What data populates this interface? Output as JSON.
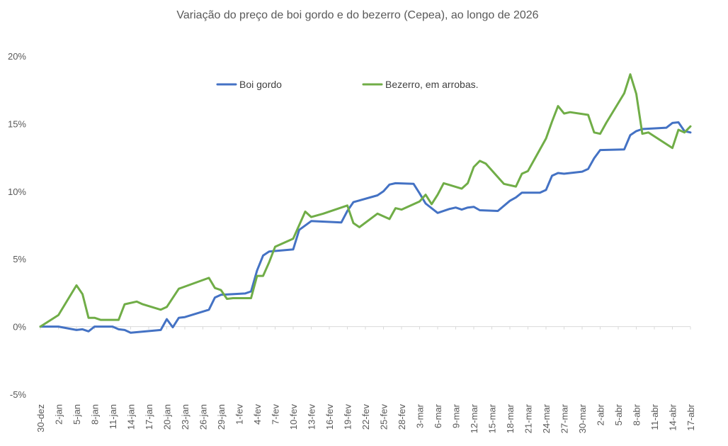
{
  "chart_data": {
    "type": "line",
    "title": "Variação do preço de boi gordo  e do bezerro (Cepea), ao longo de 2026",
    "xlabel": "",
    "ylabel": "",
    "ylim": [
      -0.05,
      0.2
    ],
    "y_ticks": [
      -0.05,
      0,
      0.05,
      0.1,
      0.15,
      0.2
    ],
    "y_tick_labels": [
      "-5%",
      "0%",
      "5%",
      "10%",
      "15%",
      "20%"
    ],
    "x_range": [
      0,
      108
    ],
    "x_tick_positions": [
      0,
      3,
      6,
      9,
      12,
      15,
      18,
      21,
      24,
      27,
      30,
      33,
      36,
      39,
      42,
      45,
      48,
      51,
      54,
      57,
      60,
      63,
      66,
      69,
      72,
      75,
      78,
      81,
      84,
      87,
      90,
      93,
      96,
      99,
      102,
      105,
      108
    ],
    "x_tick_labels": [
      "30-dez",
      "2-jan",
      "5-jan",
      "8-jan",
      "11-jan",
      "14-jan",
      "17-jan",
      "20-jan",
      "23-jan",
      "26-jan",
      "29-jan",
      "1-fev",
      "4-fev",
      "7-fev",
      "10-fev",
      "13-fev",
      "16-fev",
      "19-fev",
      "22-fev",
      "25-fev",
      "28-fev",
      "3-mar",
      "6-mar",
      "9-mar",
      "12-mar",
      "15-mar",
      "18-mar",
      "21-mar",
      "24-mar",
      "27-mar",
      "30-mar",
      "2-abr",
      "5-abr",
      "8-abr",
      "11-abr",
      "14-abr",
      "17-abr"
    ],
    "legend_position": "top-center",
    "series": [
      {
        "name": "Boi gordo",
        "color": "#4472C4",
        "points": [
          [
            0,
            0.0
          ],
          [
            3,
            0.0
          ],
          [
            6,
            -0.0025
          ],
          [
            7,
            -0.002
          ],
          [
            8,
            -0.0035
          ],
          [
            9,
            0.0
          ],
          [
            12,
            0.0
          ],
          [
            13,
            -0.002
          ],
          [
            14,
            -0.0025
          ],
          [
            15,
            -0.0045
          ],
          [
            20,
            -0.0025
          ],
          [
            21,
            0.0055
          ],
          [
            22,
            -0.0005
          ],
          [
            23,
            0.0065
          ],
          [
            24,
            0.007
          ],
          [
            28,
            0.0125
          ],
          [
            29,
            0.0215
          ],
          [
            30,
            0.0235
          ],
          [
            34,
            0.0245
          ],
          [
            35,
            0.026
          ],
          [
            36,
            0.0415
          ],
          [
            37,
            0.0525
          ],
          [
            38,
            0.0555
          ],
          [
            42,
            0.057
          ],
          [
            43,
            0.0715
          ],
          [
            45,
            0.078
          ],
          [
            50,
            0.077
          ],
          [
            51,
            0.0855
          ],
          [
            52,
            0.092
          ],
          [
            56,
            0.097
          ],
          [
            57,
            0.1
          ],
          [
            58,
            0.105
          ],
          [
            59,
            0.106
          ],
          [
            62,
            0.1055
          ],
          [
            63,
            0.0985
          ],
          [
            64,
            0.091
          ],
          [
            66,
            0.084
          ],
          [
            68,
            0.087
          ],
          [
            69,
            0.088
          ],
          [
            70,
            0.0865
          ],
          [
            71,
            0.088
          ],
          [
            72,
            0.0885
          ],
          [
            73,
            0.086
          ],
          [
            76,
            0.0855
          ],
          [
            78,
            0.093
          ],
          [
            79,
            0.0955
          ],
          [
            80,
            0.099
          ],
          [
            83,
            0.099
          ],
          [
            84,
            0.101
          ],
          [
            85,
            0.1115
          ],
          [
            86,
            0.1135
          ],
          [
            87,
            0.113
          ],
          [
            90,
            0.1145
          ],
          [
            91,
            0.1165
          ],
          [
            92,
            0.1245
          ],
          [
            93,
            0.1305
          ],
          [
            97,
            0.131
          ],
          [
            98,
            0.1415
          ],
          [
            99,
            0.1445
          ],
          [
            100,
            0.146
          ],
          [
            104,
            0.147
          ],
          [
            105,
            0.1505
          ],
          [
            106,
            0.151
          ],
          [
            107,
            0.1445
          ],
          [
            108,
            0.1435
          ]
        ]
      },
      {
        "name": "Bezerro, em arrobas.",
        "color": "#70AD47",
        "points": [
          [
            0,
            0.0
          ],
          [
            3,
            0.0085
          ],
          [
            6,
            0.0305
          ],
          [
            7,
            0.024
          ],
          [
            8,
            0.0065
          ],
          [
            9,
            0.0065
          ],
          [
            10,
            0.005
          ],
          [
            13,
            0.005
          ],
          [
            14,
            0.0165
          ],
          [
            16,
            0.0185
          ],
          [
            17,
            0.0165
          ],
          [
            20,
            0.0125
          ],
          [
            21,
            0.0145
          ],
          [
            23,
            0.028
          ],
          [
            28,
            0.036
          ],
          [
            29,
            0.0285
          ],
          [
            30,
            0.027
          ],
          [
            31,
            0.0205
          ],
          [
            32,
            0.021
          ],
          [
            35,
            0.021
          ],
          [
            36,
            0.0375
          ],
          [
            37,
            0.0375
          ],
          [
            38,
            0.0475
          ],
          [
            39,
            0.059
          ],
          [
            42,
            0.065
          ],
          [
            44,
            0.085
          ],
          [
            45,
            0.081
          ],
          [
            47,
            0.0835
          ],
          [
            51,
            0.0895
          ],
          [
            52,
            0.0765
          ],
          [
            53,
            0.0735
          ],
          [
            56,
            0.0835
          ],
          [
            58,
            0.0795
          ],
          [
            59,
            0.0875
          ],
          [
            60,
            0.0865
          ],
          [
            63,
            0.0925
          ],
          [
            64,
            0.0975
          ],
          [
            65,
            0.0905
          ],
          [
            66,
            0.0975
          ],
          [
            67,
            0.106
          ],
          [
            70,
            0.102
          ],
          [
            71,
            0.106
          ],
          [
            72,
            0.118
          ],
          [
            73,
            0.1225
          ],
          [
            74,
            0.1205
          ],
          [
            77,
            0.1055
          ],
          [
            79,
            0.1035
          ],
          [
            80,
            0.113
          ],
          [
            81,
            0.115
          ],
          [
            84,
            0.139
          ],
          [
            85,
            0.1515
          ],
          [
            86,
            0.163
          ],
          [
            87,
            0.1575
          ],
          [
            88,
            0.1585
          ],
          [
            91,
            0.1565
          ],
          [
            92,
            0.1435
          ],
          [
            93,
            0.1425
          ],
          [
            94,
            0.1505
          ],
          [
            97,
            0.1725
          ],
          [
            98,
            0.1865
          ],
          [
            99,
            0.172
          ],
          [
            100,
            0.1425
          ],
          [
            101,
            0.1435
          ],
          [
            105,
            0.132
          ],
          [
            106,
            0.1455
          ],
          [
            107,
            0.1435
          ],
          [
            108,
            0.148
          ]
        ]
      }
    ]
  }
}
